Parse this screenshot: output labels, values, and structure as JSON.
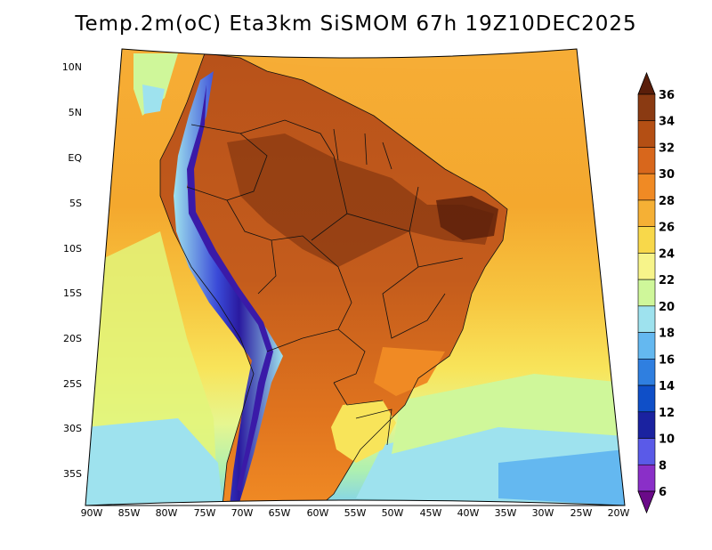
{
  "title": "Temp.2m(oC) Eta3km SiSMOM 67h 19Z10DEC2025",
  "map": {
    "variable": "2m temperature",
    "units": "oC",
    "region": "South America",
    "lat_ticks": [
      "10N",
      "5N",
      "EQ",
      "5S",
      "10S",
      "15S",
      "20S",
      "25S",
      "30S",
      "35S"
    ],
    "lon_ticks": [
      "90W",
      "85W",
      "80W",
      "75W",
      "70W",
      "65W",
      "60W",
      "55W",
      "50W",
      "45W",
      "40W",
      "35W",
      "30W",
      "25W",
      "20W"
    ]
  },
  "colorbar": {
    "labels": [
      "36",
      "34",
      "32",
      "30",
      "28",
      "26",
      "24",
      "22",
      "20",
      "18",
      "16",
      "14",
      "12",
      "10",
      "8",
      "6"
    ],
    "colors": [
      "#5a1e0a",
      "#8a3a12",
      "#b44f14",
      "#d8671c",
      "#f08a24",
      "#f5b035",
      "#f8d84a",
      "#f7f48a",
      "#cff79a",
      "#9ee2ee",
      "#64b8f0",
      "#2f7fe0",
      "#0f4fc8",
      "#1a22a0",
      "#5a5ae8",
      "#8a2fc8",
      "#6a0a88"
    ]
  },
  "colors": {
    "ocean_warm": "#f5a830",
    "ocean_mid": "#f8d84a",
    "ocean_cool": "#cff79a",
    "ocean_cold": "#9ee2ee",
    "land_hot": "#c0571a",
    "land_hotter": "#8a3a12",
    "andes_cold": "#3a2ab8",
    "border": "#111111"
  }
}
